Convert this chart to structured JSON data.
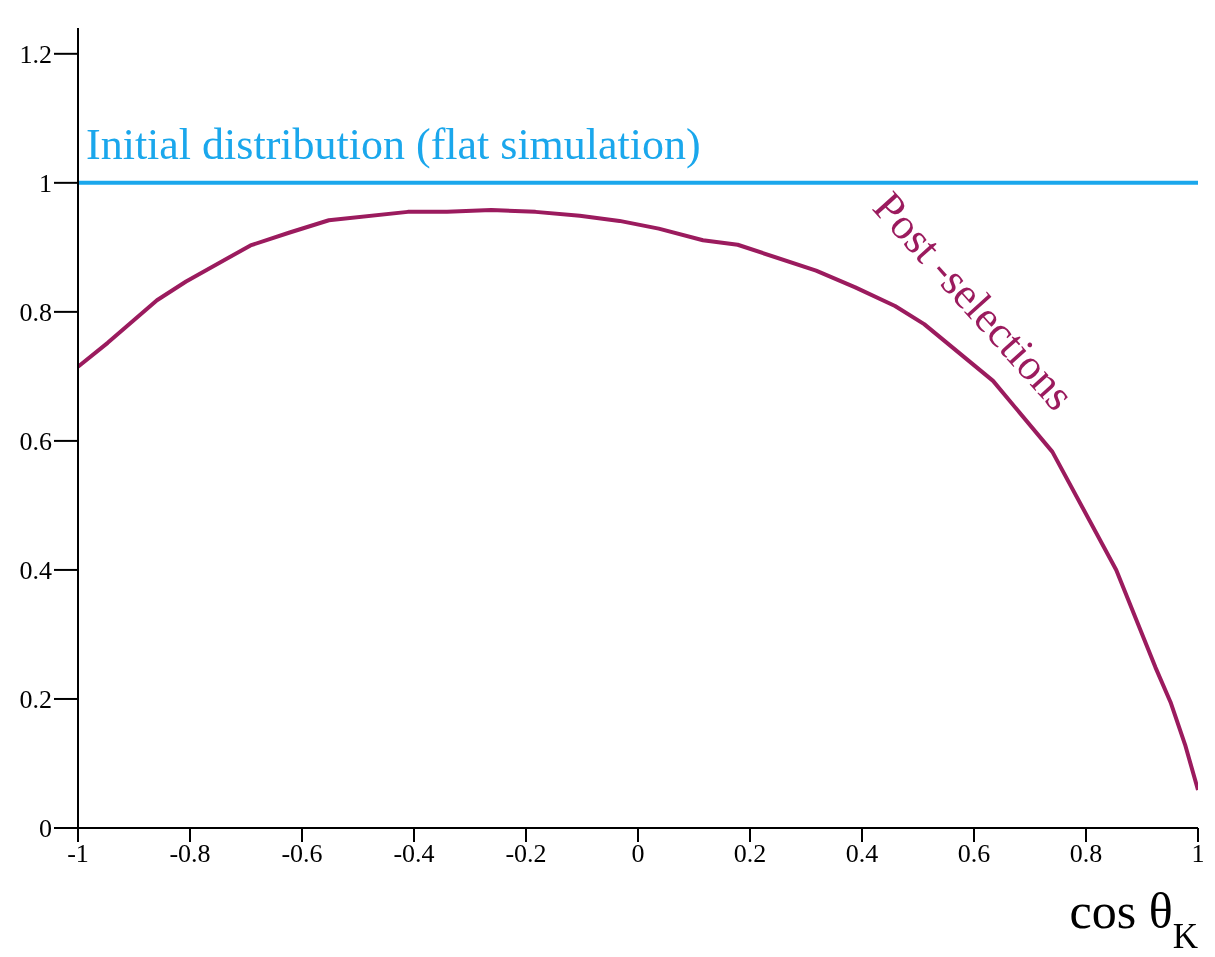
{
  "chart_data": {
    "type": "line",
    "xlabel": "cos θ$_{K}$",
    "xlim": [
      -1,
      1
    ],
    "ylim": [
      0,
      1.24
    ],
    "xticks": [
      -1,
      -0.8,
      -0.6,
      -0.4,
      -0.2,
      0,
      0.2,
      0.4,
      0.6,
      0.8,
      1
    ],
    "yticks": [
      0,
      0.2,
      0.4,
      0.6,
      0.8,
      1,
      1.2
    ],
    "legend": false,
    "grid": false,
    "marker": "none",
    "line_style": "solid",
    "series": [
      {
        "name": "Initial distribution (flat simulation)",
        "color": "#1aa7ec",
        "x": [
          -1,
          1
        ],
        "values": [
          1,
          1
        ]
      },
      {
        "name": "Post -selections",
        "color": "#9b1b5e",
        "x": [
          -1,
          -0.947,
          -0.859,
          -0.807,
          -0.692,
          -0.622,
          -0.552,
          -0.411,
          -0.341,
          -0.262,
          -0.183,
          -0.104,
          -0.033,
          0.037,
          0.116,
          0.178,
          0.318,
          0.388,
          0.459,
          0.511,
          0.634,
          0.74,
          0.854,
          0.924,
          0.951,
          0.977,
          1
        ],
        "values": [
          0.715,
          0.752,
          0.818,
          0.847,
          0.903,
          0.923,
          0.942,
          0.955,
          0.955,
          0.958,
          0.955,
          0.949,
          0.941,
          0.929,
          0.911,
          0.904,
          0.864,
          0.838,
          0.809,
          0.781,
          0.693,
          0.583,
          0.4,
          0.249,
          0.195,
          0.129,
          0.059
        ]
      }
    ]
  }
}
